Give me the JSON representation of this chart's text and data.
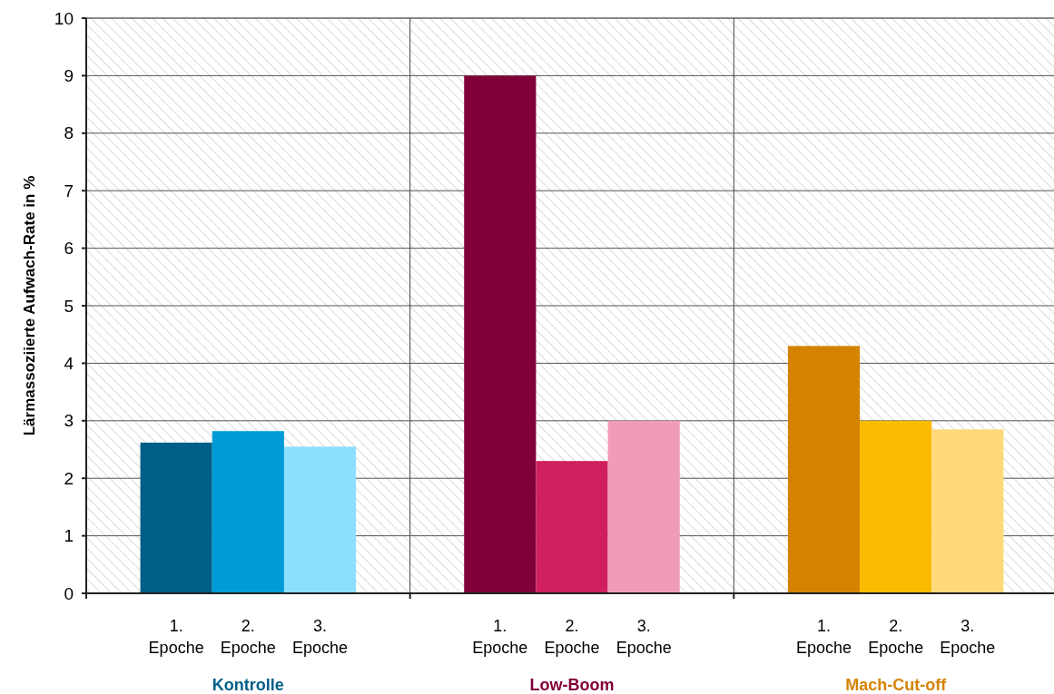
{
  "chart_data": {
    "type": "bar",
    "ylabel": "Lärmassoziierte Aufwach-Rate in %",
    "categories": [
      "1. Epoche",
      "2. Epoche",
      "3. Epoche",
      "1. Epoche",
      "2. Epoche",
      "3. Epoche",
      "1. Epoche",
      "2. Epoche",
      "3. Epoche"
    ],
    "series": [
      {
        "name": "Kontrolle",
        "color": "#005f87",
        "values": [
          2.62,
          2.82,
          2.55,
          null,
          null,
          null,
          null,
          null,
          null
        ],
        "colors": [
          "#005f87",
          "#009cd8",
          "#8ddfff",
          null,
          null,
          null,
          null,
          null,
          null
        ]
      },
      {
        "name": "Low-Boom",
        "color": "#800038",
        "values": [
          null,
          null,
          null,
          9.0,
          2.3,
          3.0,
          null,
          null,
          null
        ],
        "colors": [
          null,
          null,
          null,
          "#800038",
          "#cf1f5e",
          "#f09cb8",
          null,
          null,
          null
        ]
      },
      {
        "name": "Mach-Cut-off",
        "color": "#d48300",
        "values": [
          null,
          null,
          null,
          null,
          null,
          null,
          4.3,
          3.0,
          2.85
        ],
        "colors": [
          null,
          null,
          null,
          null,
          null,
          null,
          "#d48300",
          "#fbbb00",
          "#ffd97a"
        ]
      }
    ],
    "ylim": [
      0,
      10
    ],
    "yticks": [
      0,
      1,
      2,
      3,
      4,
      5,
      6,
      7,
      8,
      9,
      10
    ],
    "grid": "y"
  }
}
